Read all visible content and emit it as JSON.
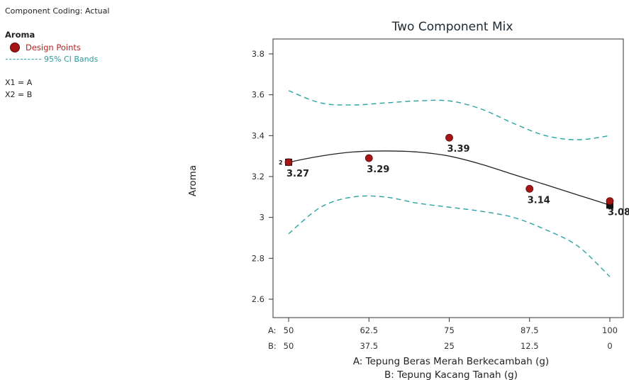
{
  "sidebar": {
    "coding": "Component Coding: Actual",
    "response": "Aroma",
    "legend_design": "Design Points",
    "legend_ci": "95% CI Bands",
    "x1": "X1 = A",
    "x2": "X2 = B"
  },
  "colors": {
    "design_point": "#a51515",
    "ci_band": "#2aa3a3",
    "fit_line": "#222222"
  },
  "chart_data": {
    "type": "line",
    "title": "Two Component Mix",
    "ylabel": "Aroma",
    "xlabel_a": "A: Tepung Beras Merah Berkecambah (g)",
    "xlabel_b": "B: Tepung Kacang Tanah (g)",
    "x_row_a_label": "A:",
    "x_row_b_label": "B:",
    "a_ticks": [
      "50",
      "62.5",
      "75",
      "87.5",
      "100"
    ],
    "b_ticks": [
      "50",
      "37.5",
      "25",
      "12.5",
      "0"
    ],
    "xlim": [
      50,
      100
    ],
    "ylim": [
      2.55,
      3.85
    ],
    "yticks": [
      2.6,
      2.8,
      3.0,
      3.2,
      3.4,
      3.6,
      3.8
    ],
    "ytick_labels": [
      "2.6",
      "2.8",
      "3",
      "3.2",
      "3.4",
      "3.6",
      "3.8"
    ],
    "grid": false,
    "fit": {
      "x": [
        50,
        55,
        60,
        65,
        70,
        75,
        80,
        85,
        90,
        95,
        100
      ],
      "y": [
        3.27,
        3.3,
        3.32,
        3.325,
        3.32,
        3.3,
        3.26,
        3.21,
        3.16,
        3.11,
        3.06
      ]
    },
    "ci_upper": {
      "x": [
        50,
        55,
        60,
        65,
        70,
        75,
        80,
        85,
        90,
        95,
        100
      ],
      "y": [
        3.62,
        3.56,
        3.55,
        3.56,
        3.57,
        3.57,
        3.53,
        3.46,
        3.4,
        3.38,
        3.4
      ]
    },
    "ci_lower": {
      "x": [
        50,
        55,
        60,
        65,
        70,
        75,
        80,
        85,
        90,
        95,
        100
      ],
      "y": [
        2.92,
        3.05,
        3.1,
        3.1,
        3.07,
        3.05,
        3.03,
        3.0,
        2.94,
        2.86,
        2.71
      ]
    },
    "design_points": [
      {
        "x": 50,
        "y": 3.27,
        "label": "3.27",
        "replicates": "2"
      },
      {
        "x": 62.5,
        "y": 3.29,
        "label": "3.29"
      },
      {
        "x": 75,
        "y": 3.39,
        "label": "3.39"
      },
      {
        "x": 87.5,
        "y": 3.14,
        "label": "3.14"
      },
      {
        "x": 100,
        "y": 3.08,
        "label": "3.08"
      }
    ],
    "square_markers": [
      {
        "x": 50,
        "y": 3.27
      },
      {
        "x": 100,
        "y": 3.06
      }
    ]
  }
}
